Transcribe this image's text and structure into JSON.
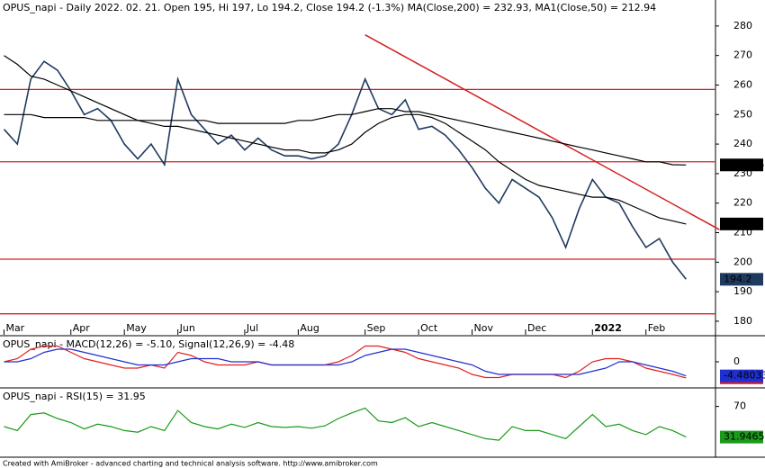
{
  "chart_data": [
    {
      "type": "line",
      "title": "OPUS_napi - Daily 2022. 02. 21. Open 195, Hi 197, Lo 194.2, Close 194.2 (-1.3%) MA(Close,200) = 232.93, MA1(Close,50) = 212.94",
      "categories": [
        "Mar",
        null,
        null,
        null,
        null,
        "Apr",
        null,
        null,
        null,
        "May",
        null,
        null,
        null,
        "Jun",
        null,
        null,
        null,
        null,
        "Jul",
        null,
        null,
        null,
        "Aug",
        null,
        null,
        null,
        null,
        "Sep",
        null,
        null,
        null,
        "Oct",
        null,
        null,
        null,
        "Nov",
        null,
        null,
        null,
        "Dec",
        null,
        null,
        null,
        null,
        "2022",
        null,
        null,
        null,
        "Feb",
        null,
        null,
        null
      ],
      "xlim": [
        -0.3,
        53.2
      ],
      "series": [
        {
          "color": "#1f3a5f",
          "values": [
            245,
            240,
            262,
            268,
            265,
            258,
            250,
            252,
            248,
            240,
            235,
            240,
            233,
            262,
            250,
            245,
            240,
            243,
            238,
            242,
            238,
            236,
            236,
            235,
            236,
            240,
            250,
            262,
            252,
            250,
            255,
            245,
            246,
            243,
            238,
            232,
            225,
            220,
            228,
            225,
            222,
            215,
            205,
            218,
            228,
            222,
            220,
            212,
            205,
            208,
            200,
            194.2
          ]
        },
        {
          "color": "#000000",
          "values": [
            250,
            250,
            250,
            249,
            249,
            249,
            249,
            248,
            248,
            248,
            248,
            248,
            248,
            248,
            248,
            248,
            247,
            247,
            247,
            247,
            247,
            247,
            248,
            248,
            249,
            250,
            250,
            251,
            252,
            252,
            251,
            251,
            250,
            249,
            248,
            247,
            246,
            245,
            244,
            243,
            242,
            241,
            240,
            239,
            238,
            237,
            236,
            235,
            234,
            234,
            233,
            232.935
          ]
        },
        {
          "color": "#000000",
          "values": [
            270,
            267,
            263,
            262,
            260,
            258,
            256,
            254,
            252,
            250,
            248,
            247,
            246,
            246,
            245,
            244,
            243,
            242,
            241,
            240,
            239,
            238,
            238,
            237,
            237,
            238,
            240,
            244,
            247,
            249,
            250,
            250,
            249,
            247,
            244,
            241,
            238,
            234,
            231,
            228,
            226,
            225,
            224,
            223,
            222,
            222,
            221,
            219,
            217,
            215,
            214,
            212.94
          ]
        }
      ],
      "ylim": [
        175.4,
        288.8
      ],
      "yticks": [
        180,
        190,
        200,
        210,
        220,
        230,
        240,
        250,
        260,
        270,
        280
      ],
      "hlines": [
        258.5,
        234,
        201,
        182.5
      ],
      "trendline": {
        "x": [
          27,
          53.5
        ],
        "y": [
          277,
          211
        ]
      },
      "line_color": "#d42020"
    },
    {
      "type": "line",
      "title": "OPUS_napi - MACD(12,26) = -5.10, Signal(12,26,9) = -4.48",
      "series": [
        {
          "color": "#e02020",
          "values": [
            0,
            1,
            4,
            5,
            5,
            3,
            1,
            0,
            -1,
            -2,
            -2,
            -1,
            -2,
            3,
            2,
            0,
            -1,
            -1,
            -1,
            0,
            -1,
            -1,
            -1,
            -1,
            -1,
            0,
            2,
            5,
            5,
            4,
            3,
            1,
            0,
            -1,
            -2,
            -4,
            -5,
            -5,
            -4,
            -4,
            -4,
            -4,
            -5,
            -3,
            0,
            1,
            1,
            0,
            -2,
            -3,
            -4,
            -5.1027
          ]
        },
        {
          "color": "#2030d0",
          "values": [
            0,
            0,
            1,
            3,
            4,
            4,
            3,
            2,
            1,
            0,
            -1,
            -1,
            -1,
            0,
            1,
            1,
            1,
            0,
            0,
            0,
            -1,
            -1,
            -1,
            -1,
            -1,
            -1,
            0,
            2,
            3,
            4,
            4,
            3,
            2,
            1,
            0,
            -1,
            -3,
            -4,
            -4,
            -4,
            -4,
            -4,
            -4,
            -4,
            -3,
            -2,
            0,
            0,
            -1,
            -2,
            -3,
            -4.48033
          ]
        }
      ],
      "ylim": [
        -8,
        8
      ],
      "yticks": [
        0
      ]
    },
    {
      "type": "line",
      "title": "OPUS_napi - RSI(15) = 31.95",
      "series": [
        {
          "color": "#1a9a1a",
          "values": [
            45,
            40,
            60,
            62,
            55,
            50,
            42,
            48,
            45,
            40,
            38,
            45,
            40,
            65,
            50,
            45,
            42,
            48,
            44,
            50,
            45,
            44,
            45,
            43,
            46,
            55,
            62,
            68,
            52,
            50,
            56,
            45,
            50,
            45,
            40,
            35,
            30,
            28,
            45,
            40,
            40,
            35,
            30,
            45,
            60,
            45,
            48,
            40,
            35,
            45,
            40,
            31.9465
          ]
        }
      ],
      "ylim": [
        8,
        92
      ],
      "yticks": [
        70
      ]
    }
  ],
  "footer": "Created with AmiBroker - advanced charting and technical analysis software. http://www.amibroker.com"
}
